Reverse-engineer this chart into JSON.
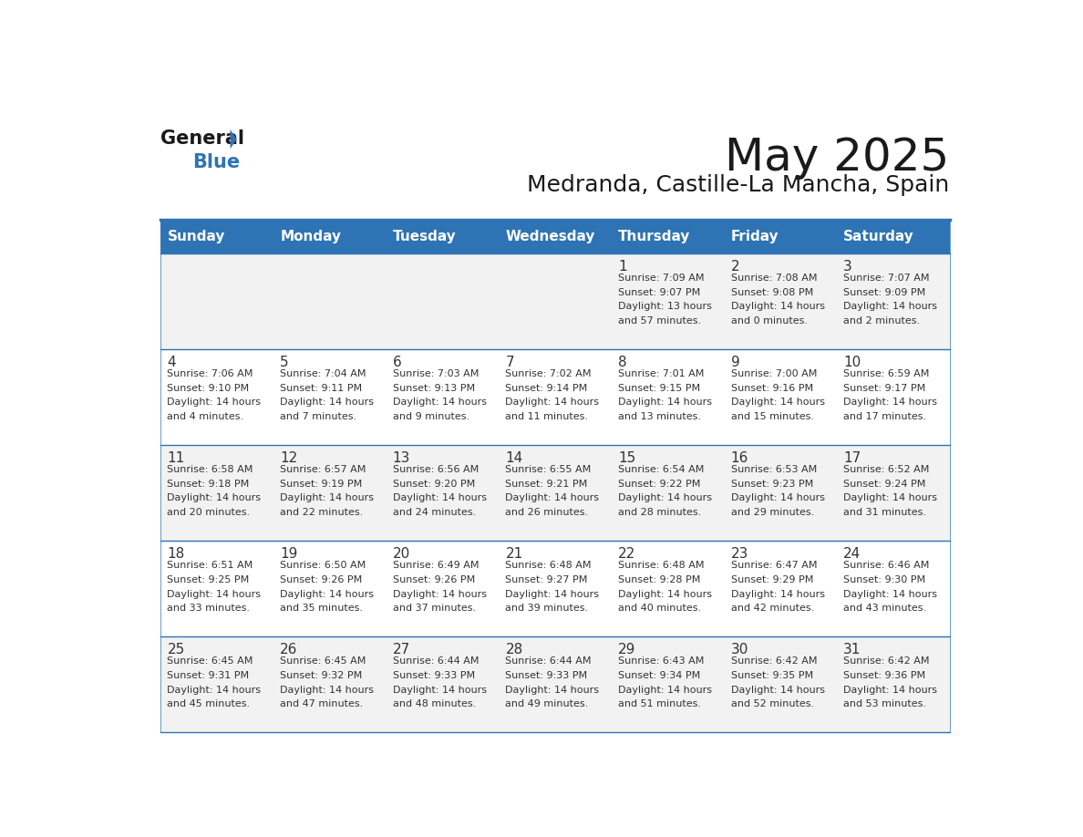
{
  "title": "May 2025",
  "subtitle": "Medranda, Castille-La Mancha, Spain",
  "days_of_week": [
    "Sunday",
    "Monday",
    "Tuesday",
    "Wednesday",
    "Thursday",
    "Friday",
    "Saturday"
  ],
  "header_bg": "#2E74B5",
  "header_text": "#FFFFFF",
  "row_bg_odd": "#F2F2F2",
  "row_bg_even": "#FFFFFF",
  "cell_border": "#2E74B5",
  "day_number_color": "#333333",
  "text_color": "#333333",
  "title_color": "#1a1a1a",
  "subtitle_color": "#1a1a1a",
  "calendar_data": [
    [
      null,
      null,
      null,
      null,
      {
        "day": 1,
        "sunrise": "7:09 AM",
        "sunset": "9:07 PM",
        "daylight": "13 hours and 57 minutes"
      },
      {
        "day": 2,
        "sunrise": "7:08 AM",
        "sunset": "9:08 PM",
        "daylight": "14 hours and 0 minutes"
      },
      {
        "day": 3,
        "sunrise": "7:07 AM",
        "sunset": "9:09 PM",
        "daylight": "14 hours and 2 minutes"
      }
    ],
    [
      {
        "day": 4,
        "sunrise": "7:06 AM",
        "sunset": "9:10 PM",
        "daylight": "14 hours and 4 minutes"
      },
      {
        "day": 5,
        "sunrise": "7:04 AM",
        "sunset": "9:11 PM",
        "daylight": "14 hours and 7 minutes"
      },
      {
        "day": 6,
        "sunrise": "7:03 AM",
        "sunset": "9:13 PM",
        "daylight": "14 hours and 9 minutes"
      },
      {
        "day": 7,
        "sunrise": "7:02 AM",
        "sunset": "9:14 PM",
        "daylight": "14 hours and 11 minutes"
      },
      {
        "day": 8,
        "sunrise": "7:01 AM",
        "sunset": "9:15 PM",
        "daylight": "14 hours and 13 minutes"
      },
      {
        "day": 9,
        "sunrise": "7:00 AM",
        "sunset": "9:16 PM",
        "daylight": "14 hours and 15 minutes"
      },
      {
        "day": 10,
        "sunrise": "6:59 AM",
        "sunset": "9:17 PM",
        "daylight": "14 hours and 17 minutes"
      }
    ],
    [
      {
        "day": 11,
        "sunrise": "6:58 AM",
        "sunset": "9:18 PM",
        "daylight": "14 hours and 20 minutes"
      },
      {
        "day": 12,
        "sunrise": "6:57 AM",
        "sunset": "9:19 PM",
        "daylight": "14 hours and 22 minutes"
      },
      {
        "day": 13,
        "sunrise": "6:56 AM",
        "sunset": "9:20 PM",
        "daylight": "14 hours and 24 minutes"
      },
      {
        "day": 14,
        "sunrise": "6:55 AM",
        "sunset": "9:21 PM",
        "daylight": "14 hours and 26 minutes"
      },
      {
        "day": 15,
        "sunrise": "6:54 AM",
        "sunset": "9:22 PM",
        "daylight": "14 hours and 28 minutes"
      },
      {
        "day": 16,
        "sunrise": "6:53 AM",
        "sunset": "9:23 PM",
        "daylight": "14 hours and 29 minutes"
      },
      {
        "day": 17,
        "sunrise": "6:52 AM",
        "sunset": "9:24 PM",
        "daylight": "14 hours and 31 minutes"
      }
    ],
    [
      {
        "day": 18,
        "sunrise": "6:51 AM",
        "sunset": "9:25 PM",
        "daylight": "14 hours and 33 minutes"
      },
      {
        "day": 19,
        "sunrise": "6:50 AM",
        "sunset": "9:26 PM",
        "daylight": "14 hours and 35 minutes"
      },
      {
        "day": 20,
        "sunrise": "6:49 AM",
        "sunset": "9:26 PM",
        "daylight": "14 hours and 37 minutes"
      },
      {
        "day": 21,
        "sunrise": "6:48 AM",
        "sunset": "9:27 PM",
        "daylight": "14 hours and 39 minutes"
      },
      {
        "day": 22,
        "sunrise": "6:48 AM",
        "sunset": "9:28 PM",
        "daylight": "14 hours and 40 minutes"
      },
      {
        "day": 23,
        "sunrise": "6:47 AM",
        "sunset": "9:29 PM",
        "daylight": "14 hours and 42 minutes"
      },
      {
        "day": 24,
        "sunrise": "6:46 AM",
        "sunset": "9:30 PM",
        "daylight": "14 hours and 43 minutes"
      }
    ],
    [
      {
        "day": 25,
        "sunrise": "6:45 AM",
        "sunset": "9:31 PM",
        "daylight": "14 hours and 45 minutes"
      },
      {
        "day": 26,
        "sunrise": "6:45 AM",
        "sunset": "9:32 PM",
        "daylight": "14 hours and 47 minutes"
      },
      {
        "day": 27,
        "sunrise": "6:44 AM",
        "sunset": "9:33 PM",
        "daylight": "14 hours and 48 minutes"
      },
      {
        "day": 28,
        "sunrise": "6:44 AM",
        "sunset": "9:33 PM",
        "daylight": "14 hours and 49 minutes"
      },
      {
        "day": 29,
        "sunrise": "6:43 AM",
        "sunset": "9:34 PM",
        "daylight": "14 hours and 51 minutes"
      },
      {
        "day": 30,
        "sunrise": "6:42 AM",
        "sunset": "9:35 PM",
        "daylight": "14 hours and 52 minutes"
      },
      {
        "day": 31,
        "sunrise": "6:42 AM",
        "sunset": "9:36 PM",
        "daylight": "14 hours and 53 minutes"
      }
    ]
  ]
}
